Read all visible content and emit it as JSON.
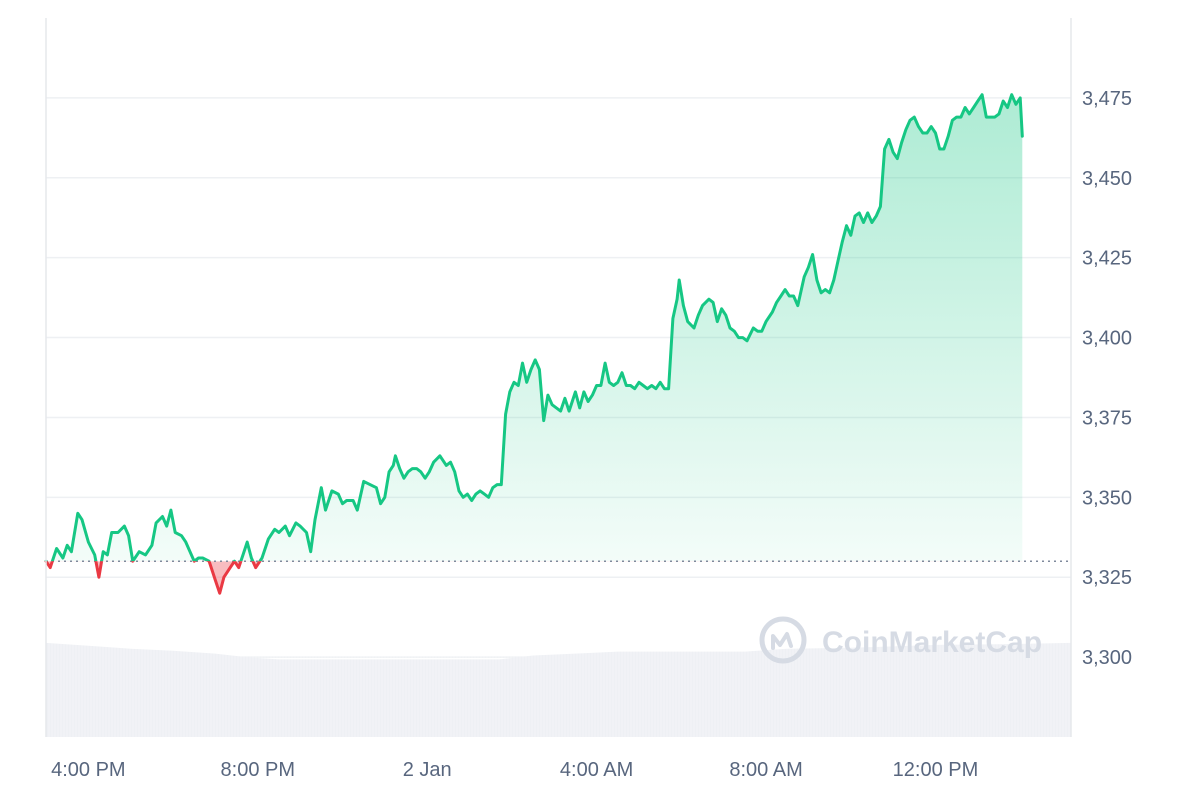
{
  "chart_data": {
    "type": "area",
    "ylim": [
      3275,
      3500
    ],
    "yticks": [
      {
        "value": 3300,
        "label": "3,300"
      },
      {
        "value": 3325,
        "label": "3,325"
      },
      {
        "value": 3350,
        "label": "3,350"
      },
      {
        "value": 3375,
        "label": "3,375"
      },
      {
        "value": 3400,
        "label": "3,400"
      },
      {
        "value": 3425,
        "label": "3,425"
      },
      {
        "value": 3450,
        "label": "3,450"
      },
      {
        "value": 3475,
        "label": "3,475"
      }
    ],
    "xticks": [
      {
        "time": 4.0,
        "label": "4:00 PM"
      },
      {
        "time": 8.0,
        "label": "8:00 PM"
      },
      {
        "time": 12.0,
        "label": "2 Jan"
      },
      {
        "time": 16.0,
        "label": "4:00 AM"
      },
      {
        "time": 20.0,
        "label": "8:00 AM"
      },
      {
        "time": 24.0,
        "label": "12:00 PM"
      }
    ],
    "xlim": [
      3.0,
      27.2
    ],
    "baseline": 3330,
    "up_color": "#16c784",
    "down_color": "#ea3943",
    "grid": true,
    "price": [
      [
        3.0,
        3330
      ],
      [
        3.1,
        3328
      ],
      [
        3.25,
        3334
      ],
      [
        3.4,
        3331
      ],
      [
        3.5,
        3335
      ],
      [
        3.6,
        3333
      ],
      [
        3.75,
        3345
      ],
      [
        3.85,
        3343
      ],
      [
        4.0,
        3336
      ],
      [
        4.15,
        3332
      ],
      [
        4.25,
        3325
      ],
      [
        4.35,
        3333
      ],
      [
        4.45,
        3332
      ],
      [
        4.55,
        3339
      ],
      [
        4.7,
        3339
      ],
      [
        4.85,
        3341
      ],
      [
        4.95,
        3338
      ],
      [
        5.05,
        3330
      ],
      [
        5.2,
        3333
      ],
      [
        5.35,
        3332
      ],
      [
        5.5,
        3335
      ],
      [
        5.6,
        3342
      ],
      [
        5.75,
        3344
      ],
      [
        5.85,
        3341
      ],
      [
        5.95,
        3346
      ],
      [
        6.05,
        3339
      ],
      [
        6.2,
        3338
      ],
      [
        6.3,
        3336
      ],
      [
        6.4,
        3333
      ],
      [
        6.5,
        3330
      ],
      [
        6.6,
        3331
      ],
      [
        6.7,
        3331
      ],
      [
        6.85,
        3330
      ],
      [
        7.0,
        3324
      ],
      [
        7.1,
        3320
      ],
      [
        7.2,
        3325
      ],
      [
        7.35,
        3328
      ],
      [
        7.45,
        3330
      ],
      [
        7.55,
        3328
      ],
      [
        7.65,
        3332
      ],
      [
        7.75,
        3336
      ],
      [
        7.85,
        3331
      ],
      [
        7.95,
        3328
      ],
      [
        8.1,
        3331
      ],
      [
        8.25,
        3337
      ],
      [
        8.4,
        3340
      ],
      [
        8.5,
        3339
      ],
      [
        8.65,
        3341
      ],
      [
        8.75,
        3338
      ],
      [
        8.9,
        3342
      ],
      [
        9.0,
        3341
      ],
      [
        9.15,
        3339
      ],
      [
        9.25,
        3333
      ],
      [
        9.35,
        3343
      ],
      [
        9.5,
        3353
      ],
      [
        9.6,
        3346
      ],
      [
        9.75,
        3352
      ],
      [
        9.9,
        3351
      ],
      [
        10.0,
        3348
      ],
      [
        10.1,
        3349
      ],
      [
        10.25,
        3349
      ],
      [
        10.35,
        3346
      ],
      [
        10.5,
        3355
      ],
      [
        10.65,
        3354
      ],
      [
        10.8,
        3353
      ],
      [
        10.9,
        3348
      ],
      [
        11.0,
        3350
      ],
      [
        11.1,
        3358
      ],
      [
        11.2,
        3360
      ],
      [
        11.25,
        3363
      ],
      [
        11.35,
        3359
      ],
      [
        11.45,
        3356
      ],
      [
        11.55,
        3358
      ],
      [
        11.65,
        3359
      ],
      [
        11.75,
        3359
      ],
      [
        11.85,
        3358
      ],
      [
        11.95,
        3356
      ],
      [
        12.05,
        3358
      ],
      [
        12.15,
        3361
      ],
      [
        12.3,
        3363
      ],
      [
        12.45,
        3360
      ],
      [
        12.55,
        3361
      ],
      [
        12.65,
        3358
      ],
      [
        12.75,
        3352
      ],
      [
        12.85,
        3350
      ],
      [
        12.95,
        3351
      ],
      [
        13.05,
        3349
      ],
      [
        13.15,
        3351
      ],
      [
        13.25,
        3352
      ],
      [
        13.35,
        3351
      ],
      [
        13.45,
        3350
      ],
      [
        13.55,
        3353
      ],
      [
        13.65,
        3354
      ],
      [
        13.75,
        3354
      ],
      [
        13.85,
        3376
      ],
      [
        13.95,
        3383
      ],
      [
        14.05,
        3386
      ],
      [
        14.15,
        3385
      ],
      [
        14.25,
        3392
      ],
      [
        14.35,
        3386
      ],
      [
        14.45,
        3390
      ],
      [
        14.55,
        3393
      ],
      [
        14.65,
        3390
      ],
      [
        14.75,
        3374
      ],
      [
        14.85,
        3382
      ],
      [
        14.95,
        3379
      ],
      [
        15.05,
        3378
      ],
      [
        15.15,
        3377
      ],
      [
        15.25,
        3381
      ],
      [
        15.35,
        3377
      ],
      [
        15.5,
        3383
      ],
      [
        15.6,
        3378
      ],
      [
        15.7,
        3383
      ],
      [
        15.8,
        3380
      ],
      [
        15.9,
        3382
      ],
      [
        16.0,
        3385
      ],
      [
        16.1,
        3385
      ],
      [
        16.2,
        3392
      ],
      [
        16.3,
        3386
      ],
      [
        16.4,
        3385
      ],
      [
        16.5,
        3386
      ],
      [
        16.6,
        3389
      ],
      [
        16.7,
        3385
      ],
      [
        16.8,
        3385
      ],
      [
        16.9,
        3384
      ],
      [
        17.0,
        3386
      ],
      [
        17.1,
        3385
      ],
      [
        17.2,
        3384
      ],
      [
        17.3,
        3385
      ],
      [
        17.4,
        3384
      ],
      [
        17.5,
        3386
      ],
      [
        17.6,
        3384
      ],
      [
        17.7,
        3384
      ],
      [
        17.8,
        3406
      ],
      [
        17.9,
        3412
      ],
      [
        17.95,
        3418
      ],
      [
        18.05,
        3410
      ],
      [
        18.15,
        3405
      ],
      [
        18.3,
        3403
      ],
      [
        18.4,
        3407
      ],
      [
        18.5,
        3410
      ],
      [
        18.65,
        3412
      ],
      [
        18.75,
        3411
      ],
      [
        18.85,
        3405
      ],
      [
        18.95,
        3409
      ],
      [
        19.05,
        3407
      ],
      [
        19.15,
        3403
      ],
      [
        19.25,
        3402
      ],
      [
        19.35,
        3400
      ],
      [
        19.45,
        3400
      ],
      [
        19.55,
        3399
      ],
      [
        19.7,
        3403
      ],
      [
        19.8,
        3402
      ],
      [
        19.9,
        3402
      ],
      [
        20.0,
        3405
      ],
      [
        20.15,
        3408
      ],
      [
        20.25,
        3411
      ],
      [
        20.35,
        3413
      ],
      [
        20.45,
        3415
      ],
      [
        20.55,
        3413
      ],
      [
        20.65,
        3413
      ],
      [
        20.75,
        3410
      ],
      [
        20.9,
        3419
      ],
      [
        21.0,
        3422
      ],
      [
        21.1,
        3426
      ],
      [
        21.2,
        3418
      ],
      [
        21.3,
        3414
      ],
      [
        21.4,
        3415
      ],
      [
        21.5,
        3414
      ],
      [
        21.6,
        3418
      ],
      [
        21.7,
        3424
      ],
      [
        21.8,
        3430
      ],
      [
        21.9,
        3435
      ],
      [
        22.0,
        3432
      ],
      [
        22.1,
        3438
      ],
      [
        22.2,
        3439
      ],
      [
        22.3,
        3436
      ],
      [
        22.4,
        3439
      ],
      [
        22.5,
        3436
      ],
      [
        22.6,
        3438
      ],
      [
        22.7,
        3441
      ],
      [
        22.8,
        3459
      ],
      [
        22.9,
        3462
      ],
      [
        23.0,
        3458
      ],
      [
        23.1,
        3456
      ],
      [
        23.2,
        3461
      ],
      [
        23.3,
        3465
      ],
      [
        23.4,
        3468
      ],
      [
        23.5,
        3469
      ],
      [
        23.6,
        3466
      ],
      [
        23.7,
        3464
      ],
      [
        23.8,
        3464
      ],
      [
        23.9,
        3466
      ],
      [
        24.0,
        3464
      ],
      [
        24.1,
        3459
      ],
      [
        24.2,
        3459
      ],
      [
        24.3,
        3463
      ],
      [
        24.4,
        3468
      ],
      [
        24.5,
        3469
      ],
      [
        24.6,
        3469
      ],
      [
        24.7,
        3472
      ],
      [
        24.8,
        3470
      ],
      [
        24.9,
        3472
      ],
      [
        25.0,
        3474
      ],
      [
        25.1,
        3476
      ],
      [
        25.2,
        3469
      ],
      [
        25.3,
        3469
      ],
      [
        25.4,
        3469
      ],
      [
        25.5,
        3470
      ],
      [
        25.6,
        3474
      ],
      [
        25.7,
        3472
      ],
      [
        25.8,
        3476
      ],
      [
        25.9,
        3473
      ],
      [
        26.0,
        3475
      ],
      [
        26.05,
        3463
      ]
    ],
    "volume": [
      [
        3.0,
        0.97
      ],
      [
        4.0,
        0.94
      ],
      [
        5.0,
        0.91
      ],
      [
        6.0,
        0.89
      ],
      [
        7.0,
        0.86
      ],
      [
        7.8,
        0.82
      ],
      [
        8.5,
        0.8
      ],
      [
        10.0,
        0.8
      ],
      [
        12.0,
        0.8
      ],
      [
        13.7,
        0.8
      ],
      [
        14.5,
        0.84
      ],
      [
        15.5,
        0.86
      ],
      [
        16.5,
        0.88
      ],
      [
        18.0,
        0.88
      ],
      [
        19.5,
        0.88
      ],
      [
        20.5,
        0.91
      ],
      [
        22.0,
        0.92
      ],
      [
        24.0,
        0.95
      ],
      [
        26.0,
        0.96
      ],
      [
        27.2,
        0.97
      ]
    ]
  },
  "watermark": {
    "logo_icon": "coinmarketcap-logo-icon",
    "text": "CoinMarketCap"
  }
}
